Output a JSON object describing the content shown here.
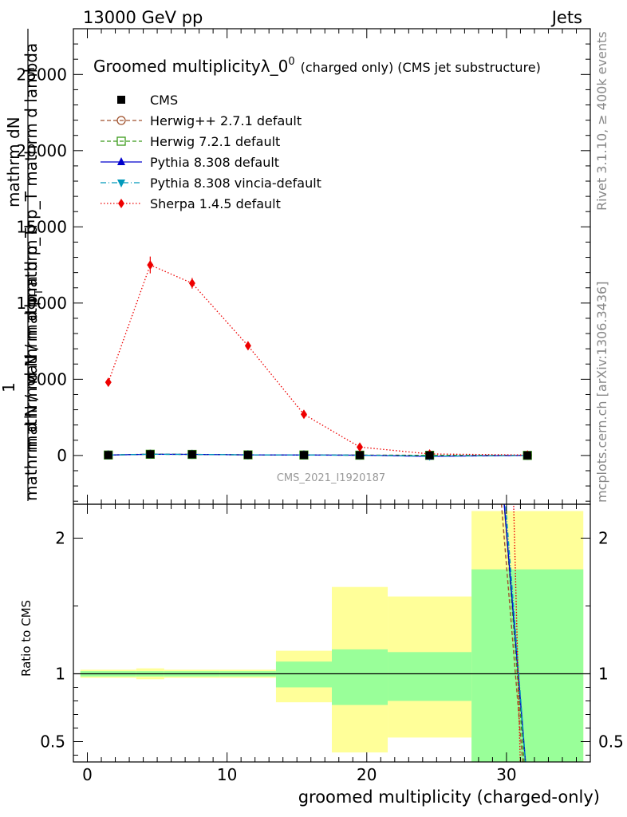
{
  "header": {
    "left": "13000 GeV pp",
    "right": "Jets"
  },
  "side_text": {
    "rivet": "Rivet 3.1.10, ≥ 400k events",
    "mcplots": "mcplots.cern.ch [arXiv:1306.3436]"
  },
  "chart_data": [
    {
      "type": "line",
      "title_main": "Groomed multiplicity",
      "title_sym": "λ_0",
      "title_sup": "0",
      "title_rest": "(charged only) (CMS jet substructure)",
      "ylabel_top": "mathrm dN",
      "ylabel_top2": "mathrm d p_T mathrm d lambda",
      "ylabel_mid": "mathrm d N / mathrm d p_T",
      "ylabel_bottom": "mathrm d N / mathrm d p",
      "ylabel_sub": "T",
      "ylabel_one": "1",
      "watermark": "CMS_2021_I1920187",
      "ylim": [
        -3200,
        28000
      ],
      "xlim": [
        -1,
        36
      ],
      "yticks": [
        0,
        5000,
        10000,
        15000,
        20000,
        25000
      ],
      "ytick_labels": [
        "0",
        "5000",
        "10000",
        "15000",
        "20000",
        "25000"
      ],
      "legend": [
        {
          "name": "CMS",
          "color": "#000000",
          "marker": "square-filled",
          "line": "none"
        },
        {
          "name": "Herwig++ 2.7.1 default",
          "color": "#a0522d",
          "marker": "circle-open",
          "line": "dashed"
        },
        {
          "name": "Herwig 7.2.1 default",
          "color": "#3a9a1a",
          "marker": "square-open",
          "line": "dashed"
        },
        {
          "name": "Pythia 8.308 default",
          "color": "#0000cc",
          "marker": "triangle-up",
          "line": "solid"
        },
        {
          "name": "Pythia 8.308 vincia-default",
          "color": "#0099bb",
          "marker": "triangle-down",
          "line": "dashdot"
        },
        {
          "name": "Sherpa 1.4.5 default",
          "color": "#ee0000",
          "marker": "diamond",
          "line": "dotted"
        }
      ],
      "bins": [
        [
          -0.5,
          3.5
        ],
        [
          3.5,
          5.5
        ],
        [
          5.5,
          9.5
        ],
        [
          9.5,
          13.5
        ],
        [
          13.5,
          17.5
        ],
        [
          17.5,
          21.5
        ],
        [
          21.5,
          27.5
        ],
        [
          27.5,
          35.5
        ]
      ],
      "x": [
        1.5,
        4.5,
        7.5,
        11.5,
        15.5,
        19.5,
        24.5,
        31.5
      ],
      "series": [
        {
          "name": "CMS",
          "values": [
            30,
            80,
            70,
            40,
            30,
            20,
            10,
            5
          ]
        },
        {
          "name": "Herwig++ 2.7.1 default",
          "values": [
            32,
            85,
            72,
            42,
            30,
            22,
            12,
            8
          ]
        },
        {
          "name": "Herwig 7.2.1 default",
          "values": [
            30,
            80,
            70,
            40,
            30,
            20,
            10,
            5
          ]
        },
        {
          "name": "Pythia 8.308 default",
          "values": [
            30,
            80,
            70,
            40,
            30,
            20,
            -60,
            5
          ]
        },
        {
          "name": "Pythia 8.308 vincia-default",
          "values": [
            30,
            80,
            70,
            40,
            30,
            20,
            -40,
            5
          ]
        },
        {
          "name": "Sherpa 1.4.5 default",
          "values": [
            4800,
            12500,
            11300,
            7200,
            2700,
            550,
            100,
            30
          ],
          "errors": [
            0,
            550,
            350,
            250,
            0,
            0,
            0,
            0
          ]
        }
      ]
    },
    {
      "type": "area",
      "ylabel": "Ratio to CMS",
      "xlabel": "groomed multiplicity (charged-only)",
      "ylim": [
        0.35,
        2.25
      ],
      "xlim": [
        -1,
        36
      ],
      "yticks": [
        0.5,
        1,
        2
      ],
      "ytick_labels": [
        "0.5",
        "1",
        "2"
      ],
      "xticks": [
        0,
        10,
        20,
        30
      ],
      "xtick_labels": [
        "0",
        "10",
        "20",
        "30"
      ],
      "bands": [
        {
          "x0": -0.5,
          "x1": 3.5,
          "yellow": [
            0.97,
            1.03
          ],
          "green": [
            0.98,
            1.02
          ]
        },
        {
          "x0": 3.5,
          "x1": 5.5,
          "yellow": [
            0.96,
            1.04
          ],
          "green": [
            0.98,
            1.02
          ]
        },
        {
          "x0": 5.5,
          "x1": 9.5,
          "yellow": [
            0.97,
            1.03
          ],
          "green": [
            0.98,
            1.02
          ]
        },
        {
          "x0": 9.5,
          "x1": 13.5,
          "yellow": [
            0.97,
            1.03
          ],
          "green": [
            0.98,
            1.02
          ]
        },
        {
          "x0": 13.5,
          "x1": 17.5,
          "yellow": [
            0.79,
            1.17
          ],
          "green": [
            0.9,
            1.09
          ]
        },
        {
          "x0": 17.5,
          "x1": 21.5,
          "yellow": [
            0.42,
            1.64
          ],
          "green": [
            0.77,
            1.18
          ]
        },
        {
          "x0": 21.5,
          "x1": 27.5,
          "yellow": [
            0.53,
            1.57
          ],
          "green": [
            0.8,
            1.16
          ]
        },
        {
          "x0": 27.5,
          "x1": 35.5,
          "yellow": [
            0.35,
            2.2
          ],
          "green": [
            0.35,
            1.77
          ]
        }
      ],
      "ratio_lines": [
        {
          "name": "Herwig++ 2.7.1 default",
          "color": "#a0522d",
          "dash": "5,3",
          "points": [
            [
              29.6,
              2.3
            ],
            [
              31.2,
              0.3
            ]
          ]
        },
        {
          "name": "Herwig 7.2.1 default",
          "color": "#3a9a1a",
          "dash": "5,3",
          "points": [
            [
              29.8,
              2.3
            ],
            [
              31.3,
              0.3
            ]
          ]
        },
        {
          "name": "Pythia 8.308 default",
          "color": "#0000cc",
          "dash": "",
          "points": [
            [
              29.8,
              2.3
            ],
            [
              31.4,
              0.3
            ]
          ]
        },
        {
          "name": "Pythia 8.308 vincia-default",
          "color": "#0099bb",
          "dash": "6,2,1,2",
          "points": [
            [
              29.9,
              2.3
            ],
            [
              31.4,
              0.3
            ]
          ]
        },
        {
          "name": "Sherpa 1.4.5 default",
          "color": "#ee0000",
          "dash": "1.5,2",
          "points": [
            [
              30.5,
              2.3
            ],
            [
              31.0,
              0.3
            ]
          ]
        }
      ]
    }
  ]
}
